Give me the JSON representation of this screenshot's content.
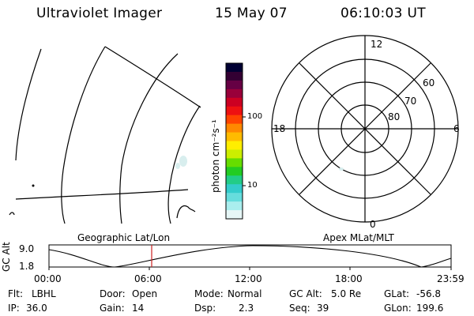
{
  "header": {
    "instrument": "Ultraviolet Imager",
    "date": "15 May 07",
    "time": "06:10:03 UT"
  },
  "colorbar": {
    "label": "photon cm⁻²s⁻¹",
    "tick_labels": [
      "100",
      "10"
    ],
    "scale": "log",
    "colors": [
      "#000033",
      "#330033",
      "#660044",
      "#99003a",
      "#cc0022",
      "#ee1111",
      "#ff4400",
      "#ff8800",
      "#ffbb00",
      "#ffee00",
      "#ccee00",
      "#66dd00",
      "#22cc22",
      "#22cc88",
      "#33cccc",
      "#66dddd",
      "#aaeeee",
      "#e6f6f6"
    ]
  },
  "panels": {
    "geographic_label": "Geographic Lat/Lon",
    "apex_label": "Apex  MLat/MLT"
  },
  "polar_plot": {
    "mlt_labels": {
      "top": "12",
      "left": "18",
      "right": "6",
      "bottom": "0"
    },
    "mlat_labels": [
      "60",
      "70",
      "80"
    ]
  },
  "altitude_plot": {
    "ylabel": "GC Alt",
    "y_ticks": [
      "9.0",
      "1.8"
    ],
    "x_ticks": [
      "00:00",
      "06:00",
      "12:00",
      "18:00",
      "23:59"
    ],
    "current_time_marker": "06:10",
    "marker_color": "#cc2222"
  },
  "status": {
    "row1": [
      {
        "key": "Flt:",
        "value": "LBHL"
      },
      {
        "key": "Door:",
        "value": "Open"
      },
      {
        "key": "Mode:",
        "value": "Normal"
      },
      {
        "key": "GC Alt:",
        "value": "5.0 Re"
      },
      {
        "key": "GLat:",
        "value": "-56.8"
      }
    ],
    "row2": [
      {
        "key": "IP:",
        "value": "36.0"
      },
      {
        "key": "Gain:",
        "value": "14"
      },
      {
        "key": "Dsp:",
        "value": "2.3"
      },
      {
        "key": "Seq:",
        "value": "39"
      },
      {
        "key": "GLon:",
        "value": "199.6"
      }
    ]
  }
}
